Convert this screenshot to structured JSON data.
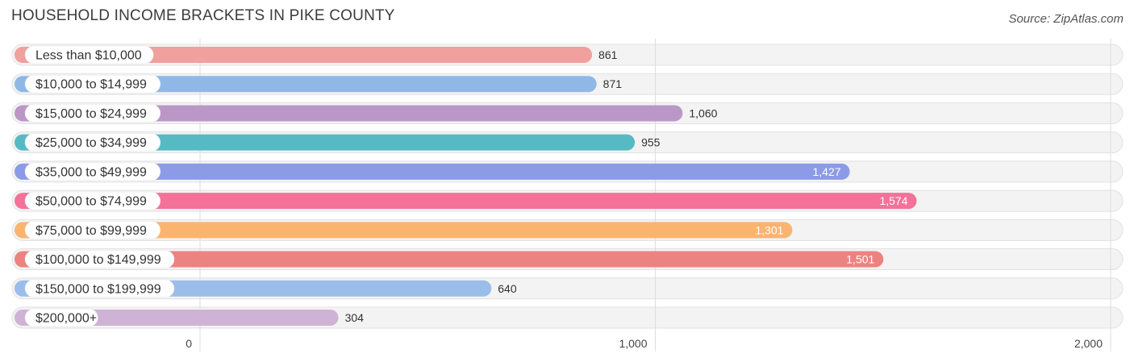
{
  "chart_data": {
    "type": "bar",
    "orientation": "horizontal",
    "title": "HOUSEHOLD INCOME BRACKETS IN PIKE COUNTY",
    "source": "Source: ZipAtlas.com",
    "categories": [
      "Less than $10,000",
      "$10,000 to $14,999",
      "$15,000 to $24,999",
      "$25,000 to $34,999",
      "$35,000 to $49,999",
      "$50,000 to $74,999",
      "$75,000 to $99,999",
      "$100,000 to $149,999",
      "$150,000 to $199,999",
      "$200,000+"
    ],
    "values": [
      861,
      871,
      1060,
      955,
      1427,
      1574,
      1301,
      1501,
      640,
      304
    ],
    "value_labels": [
      "861",
      "871",
      "1,060",
      "955",
      "1,427",
      "1,574",
      "1,301",
      "1,501",
      "640",
      "304"
    ],
    "colors": [
      "#f0a09d",
      "#90b8e6",
      "#bb97c7",
      "#56bac4",
      "#8c9be6",
      "#f2729a",
      "#fbb470",
      "#ec8381",
      "#9bbde9",
      "#cfb3d6"
    ],
    "xlim": [
      0,
      2000
    ],
    "xticks": [
      0,
      1000,
      2000
    ],
    "xtick_labels": [
      "0",
      "1,000",
      "2,000"
    ],
    "xlabel": "",
    "ylabel": "",
    "grid": true
  }
}
